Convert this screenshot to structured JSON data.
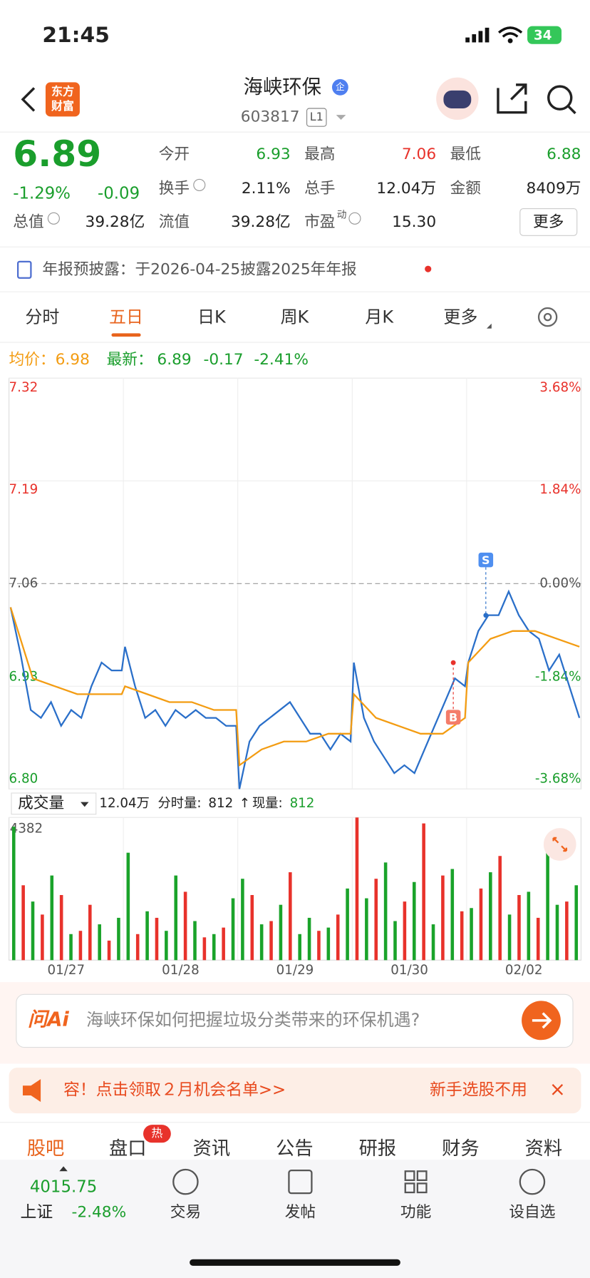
{
  "status": {
    "time": "21:45",
    "battery": "34"
  },
  "header": {
    "logo": [
      "东方",
      "财富"
    ],
    "title": "海峡环保",
    "badge": "企",
    "code": "603817",
    "level": "L1"
  },
  "quote": {
    "price": "6.89",
    "change_pct": "-1.29%",
    "change": "-0.09",
    "cells": [
      {
        "label": "今开",
        "value": "6.93",
        "color": "#1a9e2c"
      },
      {
        "label": "最高",
        "value": "7.06",
        "color": "#e8322b"
      },
      {
        "label": "最低",
        "value": "6.88",
        "color": "#1a9e2c"
      },
      {
        "label": "换手",
        "value": "2.11%"
      },
      {
        "label": "总手",
        "value": "12.04万"
      },
      {
        "label": "金额",
        "value": "8409万"
      },
      {
        "label": "总值",
        "value": "39.28亿"
      },
      {
        "label": "流值",
        "value": "39.28亿"
      },
      {
        "label": "市盈",
        "sup": "动",
        "value": "15.30"
      }
    ],
    "more": "更多"
  },
  "notice": "年报预披露：于2026-04-25披露2025年年报",
  "tabs": [
    "分时",
    "五日",
    "日K",
    "周K",
    "月K",
    "更多"
  ],
  "active_tab": 1,
  "legend": {
    "avg": "均价：6.98",
    "latest_label": "最新：",
    "latest": "6.89",
    "latest_change": "-0.17",
    "latest_pct": "-2.41%"
  },
  "trade_marks": [
    "B",
    "S"
  ],
  "volume_header": {
    "label": "成交量",
    "total": "12.04万",
    "tick_label": "分时量:",
    "tick_value": "812",
    "arrow": "↑",
    "now_label": "现量:",
    "now_value": "812"
  },
  "chart_data": {
    "type": "line",
    "categories": [
      "01/27",
      "01/28",
      "01/29",
      "01/30",
      "02/02"
    ],
    "ylim": [
      6.8,
      7.32
    ],
    "yticks": [
      7.32,
      7.19,
      7.06,
      6.93,
      {
        "value": 6.8,
        "label": "6.80"
      }
    ],
    "y2lim": [
      -3.68,
      3.68
    ],
    "y2ticks": [
      {
        "value": 3.68,
        "label": "3.68%"
      },
      {
        "value": 1.84,
        "label": "1.84%"
      },
      {
        "value": 0,
        "label": "0.00%"
      },
      {
        "value": -1.84,
        "label": "-1.84%"
      },
      {
        "value": -3.68,
        "label": "-3.68%"
      }
    ],
    "series": [
      {
        "color": "#2a6fc9",
        "values": [
          [
            7.03,
            6.97,
            6.9,
            6.89,
            6.91,
            6.88,
            6.9,
            6.89,
            6.93,
            6.96,
            6.95,
            6.95
          ],
          [
            6.98,
            6.93,
            6.89,
            6.9,
            6.88,
            6.9,
            6.89,
            6.9,
            6.89,
            6.89,
            6.88,
            6.88
          ],
          [
            6.8,
            6.86,
            6.88,
            6.89,
            6.9,
            6.91,
            6.89,
            6.87,
            6.87,
            6.85,
            6.87,
            6.86
          ],
          [
            6.96,
            6.89,
            6.86,
            6.84,
            6.82,
            6.83,
            6.82,
            6.85,
            6.88,
            6.91,
            6.94,
            6.93
          ],
          [
            6.96,
            7.0,
            7.02,
            7.02,
            7.05,
            7.02,
            7.0,
            6.99,
            6.95,
            6.97,
            6.93,
            6.89
          ]
        ]
      },
      {
        "color": "#f39c12",
        "values": [
          [
            7.03,
            6.94,
            6.93,
            6.92,
            6.92,
            6.92
          ],
          [
            6.93,
            6.92,
            6.91,
            6.91,
            6.9,
            6.9
          ],
          [
            6.83,
            6.85,
            6.86,
            6.86,
            6.87,
            6.87
          ],
          [
            6.92,
            6.89,
            6.88,
            6.87,
            6.87,
            6.89
          ],
          [
            6.96,
            6.99,
            7.0,
            7.0,
            6.99,
            6.98
          ]
        ]
      }
    ],
    "volume": {
      "type": "bar",
      "ylim": [
        0,
        4382
      ],
      "yticks": [
        4382
      ],
      "series": [
        {
          "color": "#e8322b",
          "values": [
            [
              null,
              2300,
              null,
              1400,
              null,
              2000,
              null,
              900,
              1700,
              null,
              600,
              null
            ],
            [
              null,
              800,
              null,
              1300,
              null,
              null,
              2100,
              null,
              700,
              null,
              1000,
              null
            ],
            [
              null,
              2000,
              null,
              1200,
              null,
              2700,
              null,
              null,
              900,
              null,
              1400,
              null
            ],
            [
              4382,
              null,
              2500,
              null,
              null,
              1800,
              null,
              4200,
              null,
              2600,
              null,
              1500
            ],
            [
              null,
              2200,
              null,
              3200,
              null,
              2000,
              null,
              1300,
              null,
              null,
              1800,
              null
            ]
          ]
        },
        {
          "color": "#1aa32a",
          "values": [
            [
              4100,
              null,
              1800,
              null,
              2600,
              null,
              800,
              null,
              null,
              1100,
              null,
              1300
            ],
            [
              3300,
              null,
              1500,
              null,
              900,
              2600,
              null,
              1200,
              null,
              800,
              null,
              1900
            ],
            [
              2500,
              null,
              1100,
              null,
              1700,
              null,
              800,
              1300,
              null,
              1000,
              null,
              2200
            ],
            [
              null,
              1900,
              null,
              3000,
              1200,
              null,
              2400,
              null,
              1100,
              null,
              2800,
              null
            ],
            [
              1600,
              null,
              2700,
              null,
              1400,
              null,
              2100,
              null,
              3400,
              1700,
              null,
              2300
            ]
          ]
        }
      ]
    }
  },
  "ai": {
    "logo": "问Ai",
    "question": "海峡环保如何把握垃圾分类带来的环保机遇?"
  },
  "banner": {
    "text": "容！点击领取２月机会名单>>",
    "right": "新手选股不用",
    "close": "×"
  },
  "nav": [
    "股吧",
    "盘口",
    "资讯",
    "公告",
    "研报",
    "财务",
    "资料"
  ],
  "nav_badge": "热",
  "bottom": {
    "index_value": "4015.75",
    "index_name": "上证",
    "index_pct": "-2.48%",
    "buttons": [
      "交易",
      "发帖",
      "功能",
      "设自选"
    ]
  }
}
